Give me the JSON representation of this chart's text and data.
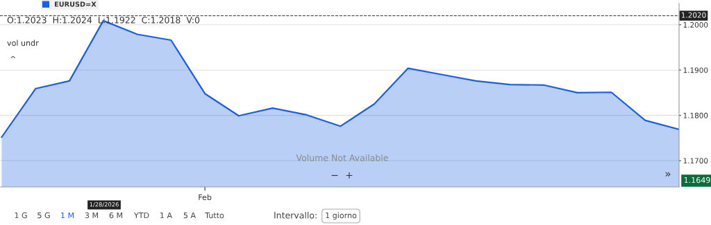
{
  "chart_data": {
    "type": "area",
    "categories": [
      null,
      null,
      null,
      null,
      null,
      null,
      "Feb",
      null,
      null,
      null,
      null,
      null,
      null,
      null,
      null,
      null,
      null,
      null,
      null,
      null,
      null
    ],
    "series": [
      {
        "name": "EURUSD=X",
        "color": "#1a5fe0",
        "values": [
          1.1752,
          1.1859,
          1.1876,
          1.2009,
          1.1979,
          1.1966,
          1.1848,
          1.1799,
          1.1816,
          1.1801,
          1.1776,
          1.1825,
          1.1904,
          1.189,
          1.1876,
          1.1868,
          1.1867,
          1.185,
          1.1851,
          1.1789,
          1.1769
        ]
      }
    ],
    "ylim": [
      1.1642,
      1.2047
    ],
    "yticks": [
      {
        "value": 1.17,
        "label": "1.1700"
      },
      {
        "value": 1.18,
        "label": "1.1800"
      },
      {
        "value": 1.19,
        "label": "1.1900"
      },
      {
        "value": 1.2,
        "label": "1.2000"
      }
    ],
    "grid": "y",
    "legend": "top left",
    "ref_lines": [
      {
        "axis": "y",
        "value": 1.202,
        "label": "1.2020",
        "color": "#555555",
        "line_style": "dashed"
      }
    ],
    "annotations": [
      "O:1.2023  H:1.2024  L:1.1922  C:1.2018  V:0",
      "vol undr",
      "^",
      "Volume Not Available",
      "−",
      "+",
      "»",
      "1/28/2026",
      "1.1649",
      "1 G",
      "5 G",
      "1 M",
      "3 M",
      "6 M",
      "YTD",
      "1 A",
      "5 A",
      "Tutto",
      "Intervallo:",
      "1 giorno"
    ]
  }
}
